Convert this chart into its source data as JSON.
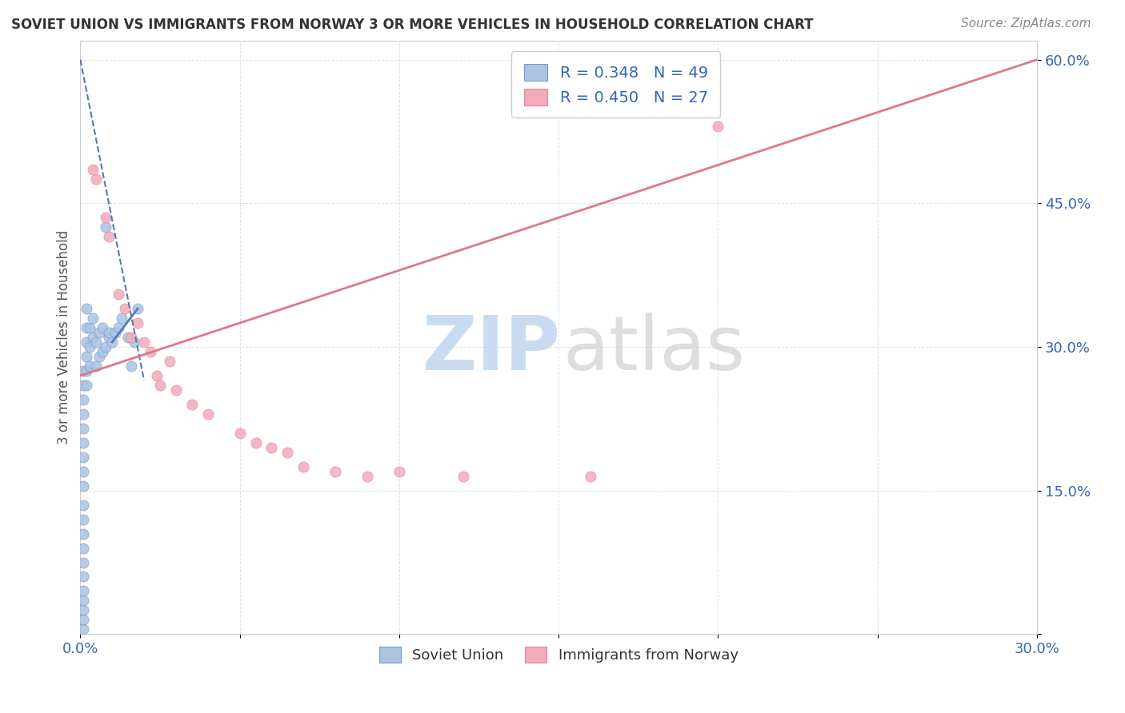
{
  "title": "SOVIET UNION VS IMMIGRANTS FROM NORWAY 3 OR MORE VEHICLES IN HOUSEHOLD CORRELATION CHART",
  "source": "Source: ZipAtlas.com",
  "ylabel": "3 or more Vehicles in Household",
  "x_min": 0.0,
  "x_max": 0.3,
  "y_min": 0.0,
  "y_max": 0.62,
  "x_ticks": [
    0.0,
    0.05,
    0.1,
    0.15,
    0.2,
    0.25,
    0.3
  ],
  "y_ticks": [
    0.0,
    0.15,
    0.3,
    0.45,
    0.6
  ],
  "legend_bottom_labels": [
    "Soviet Union",
    "Immigrants from Norway"
  ],
  "legend_top": {
    "R1": "0.348",
    "N1": "49",
    "R2": "0.450",
    "N2": "27"
  },
  "soviet_color": "#aac4e2",
  "norway_color": "#f4aabb",
  "soviet_dot_edge": "#7799cc",
  "norway_dot_edge": "#e08899",
  "soviet_line_color": "#5577bb",
  "norway_line_color": "#e07788",
  "soviet_scatter": [
    [
      0.001,
      0.005
    ],
    [
      0.001,
      0.015
    ],
    [
      0.001,
      0.025
    ],
    [
      0.001,
      0.035
    ],
    [
      0.001,
      0.045
    ],
    [
      0.001,
      0.06
    ],
    [
      0.001,
      0.075
    ],
    [
      0.001,
      0.09
    ],
    [
      0.001,
      0.105
    ],
    [
      0.001,
      0.12
    ],
    [
      0.001,
      0.135
    ],
    [
      0.001,
      0.155
    ],
    [
      0.001,
      0.17
    ],
    [
      0.001,
      0.185
    ],
    [
      0.001,
      0.2
    ],
    [
      0.001,
      0.215
    ],
    [
      0.001,
      0.23
    ],
    [
      0.001,
      0.245
    ],
    [
      0.001,
      0.26
    ],
    [
      0.001,
      0.275
    ],
    [
      0.002,
      0.26
    ],
    [
      0.002,
      0.275
    ],
    [
      0.002,
      0.29
    ],
    [
      0.002,
      0.305
    ],
    [
      0.002,
      0.32
    ],
    [
      0.003,
      0.28
    ],
    [
      0.003,
      0.3
    ],
    [
      0.003,
      0.32
    ],
    [
      0.004,
      0.31
    ],
    [
      0.004,
      0.33
    ],
    [
      0.005,
      0.28
    ],
    [
      0.005,
      0.305
    ],
    [
      0.006,
      0.29
    ],
    [
      0.006,
      0.315
    ],
    [
      0.007,
      0.295
    ],
    [
      0.007,
      0.32
    ],
    [
      0.008,
      0.3
    ],
    [
      0.008,
      0.425
    ],
    [
      0.009,
      0.31
    ],
    [
      0.009,
      0.315
    ],
    [
      0.01,
      0.305
    ],
    [
      0.011,
      0.315
    ],
    [
      0.012,
      0.32
    ],
    [
      0.013,
      0.33
    ],
    [
      0.015,
      0.31
    ],
    [
      0.016,
      0.28
    ],
    [
      0.017,
      0.305
    ],
    [
      0.018,
      0.34
    ],
    [
      0.002,
      0.34
    ]
  ],
  "norway_scatter": [
    [
      0.004,
      0.485
    ],
    [
      0.005,
      0.475
    ],
    [
      0.008,
      0.435
    ],
    [
      0.009,
      0.415
    ],
    [
      0.012,
      0.355
    ],
    [
      0.014,
      0.34
    ],
    [
      0.016,
      0.31
    ],
    [
      0.018,
      0.325
    ],
    [
      0.02,
      0.305
    ],
    [
      0.022,
      0.295
    ],
    [
      0.024,
      0.27
    ],
    [
      0.025,
      0.26
    ],
    [
      0.028,
      0.285
    ],
    [
      0.03,
      0.255
    ],
    [
      0.035,
      0.24
    ],
    [
      0.04,
      0.23
    ],
    [
      0.05,
      0.21
    ],
    [
      0.055,
      0.2
    ],
    [
      0.06,
      0.195
    ],
    [
      0.065,
      0.19
    ],
    [
      0.07,
      0.175
    ],
    [
      0.08,
      0.17
    ],
    [
      0.09,
      0.165
    ],
    [
      0.1,
      0.17
    ],
    [
      0.12,
      0.165
    ],
    [
      0.16,
      0.165
    ],
    [
      0.2,
      0.53
    ]
  ],
  "soviet_line": {
    "x0": 0.0,
    "y0": 0.6,
    "x1": 0.02,
    "y1": 0.265
  },
  "soviet_line_solid": {
    "x0": 0.01,
    "y0": 0.305,
    "x1": 0.018,
    "y1": 0.34
  },
  "norway_line": {
    "x0": 0.0,
    "y0": 0.27,
    "x1": 0.3,
    "y1": 0.6
  }
}
